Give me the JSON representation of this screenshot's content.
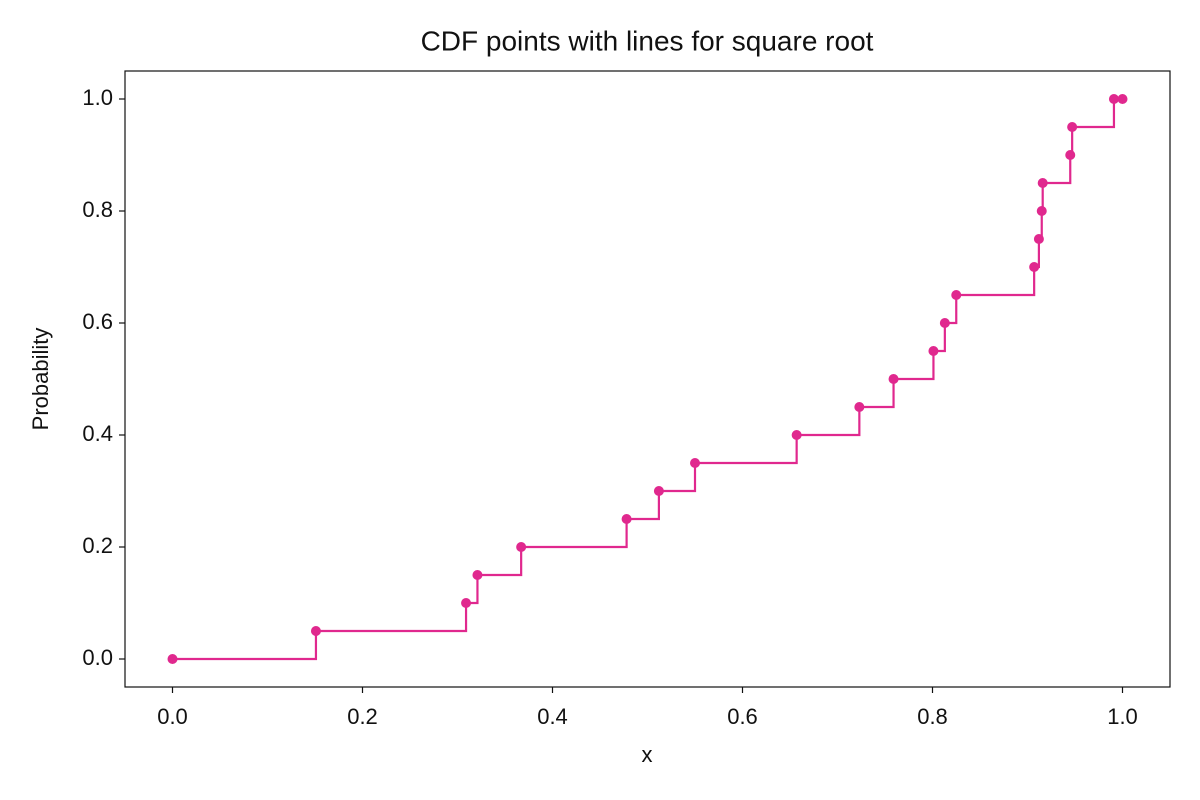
{
  "chart_data": {
    "type": "line",
    "step": "post",
    "markers": true,
    "title": "CDF points with lines for square root",
    "x_label": "x",
    "y_label": "Probability",
    "x": [
      0.0,
      0.151,
      0.309,
      0.321,
      0.367,
      0.478,
      0.512,
      0.55,
      0.657,
      0.723,
      0.759,
      0.801,
      0.813,
      0.825,
      0.907,
      0.912,
      0.915,
      0.916,
      0.945,
      0.947,
      0.991,
      1.0
    ],
    "series": [
      {
        "color": "#e0288e",
        "values": [
          0.0,
          0.05,
          0.1,
          0.15,
          0.2,
          0.25,
          0.3,
          0.35,
          0.4,
          0.45,
          0.5,
          0.55,
          0.6,
          0.65,
          0.7,
          0.75,
          0.8,
          0.85,
          0.9,
          0.95,
          1.0,
          1.0
        ]
      }
    ],
    "xlim": [
      -0.05,
      1.05
    ],
    "ylim": [
      -0.05,
      1.05
    ],
    "xticks": [
      {
        "value": 0,
        "label": "0.0"
      },
      {
        "value": 0.2,
        "label": "0.2"
      },
      {
        "value": 0.4,
        "label": "0.4"
      },
      {
        "value": 0.6,
        "label": "0.6"
      },
      {
        "value": 0.8,
        "label": "0.8"
      },
      {
        "value": 1,
        "label": "1.0"
      }
    ],
    "yticks": [
      {
        "value": 0,
        "label": "0.0"
      },
      {
        "value": 0.2,
        "label": "0.2"
      },
      {
        "value": 0.4,
        "label": "0.4"
      },
      {
        "value": 0.6,
        "label": "0.6"
      },
      {
        "value": 0.8,
        "label": "0.8"
      },
      {
        "value": 1,
        "label": "1.0"
      }
    ],
    "grid": false
  }
}
